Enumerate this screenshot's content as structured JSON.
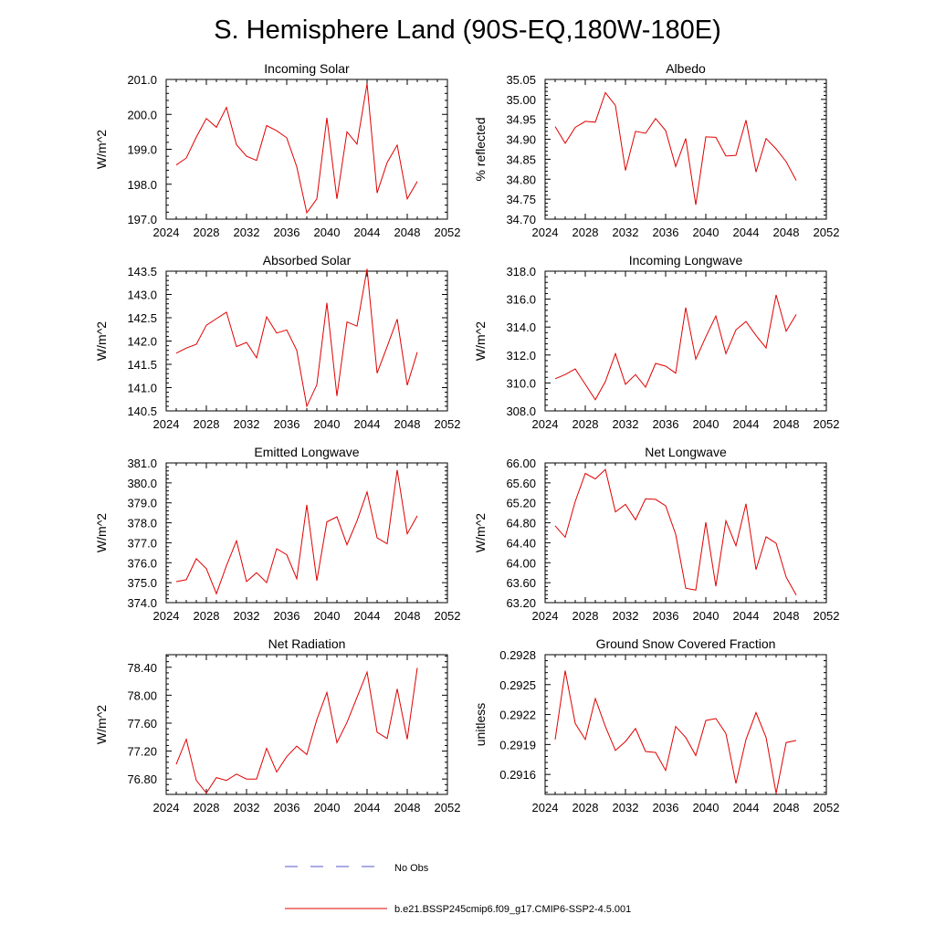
{
  "figure": {
    "title": "S. Hemisphere Land (90S-EQ,180W-180E)",
    "legend": {
      "obs_label": "No Obs",
      "model_label": "b.e21.BSSP245cmip6.f09_g17.CMIP6-SSP2-4.5.001",
      "obs_color": "#5555cc",
      "model_color": "#e00000"
    }
  },
  "chart_data": [
    {
      "type": "line",
      "title": "Incoming Solar",
      "ylabel": "W/m^2",
      "xlim": [
        2024,
        2052
      ],
      "xticks": [
        2024,
        2028,
        2032,
        2036,
        2040,
        2044,
        2048,
        2052
      ],
      "ylim": [
        197.0,
        201.0
      ],
      "yticks": [
        197.0,
        198.0,
        199.0,
        200.0,
        201.0
      ],
      "ytick_labels": [
        "197.0",
        "198.0",
        "199.0",
        "200.0",
        "201.0"
      ],
      "x": [
        2025,
        2026,
        2027,
        2028,
        2029,
        2030,
        2031,
        2032,
        2033,
        2034,
        2035,
        2036,
        2037,
        2038,
        2039,
        2040,
        2041,
        2042,
        2043,
        2044,
        2045,
        2046,
        2047,
        2048,
        2049
      ],
      "series": [
        {
          "name": "b.e21.BSSP245cmip6.f09_g17.CMIP6-SSP2-4.5.001",
          "values": [
            198.55,
            198.75,
            199.35,
            199.88,
            199.63,
            200.2,
            199.13,
            198.8,
            198.68,
            199.68,
            199.53,
            199.33,
            198.5,
            197.18,
            197.58,
            199.9,
            197.58,
            199.5,
            199.15,
            200.88,
            197.75,
            198.62,
            199.12,
            197.58,
            198.08
          ]
        }
      ]
    },
    {
      "type": "line",
      "title": "Albedo",
      "ylabel": "% reflected",
      "xlim": [
        2024,
        2052
      ],
      "xticks": [
        2024,
        2028,
        2032,
        2036,
        2040,
        2044,
        2048,
        2052
      ],
      "ylim": [
        34.7,
        35.05
      ],
      "yticks": [
        34.7,
        34.75,
        34.8,
        34.85,
        34.9,
        34.95,
        35.0,
        35.05
      ],
      "ytick_labels": [
        "34.70",
        "34.75",
        "34.80",
        "34.85",
        "34.90",
        "34.95",
        "35.00",
        "35.05"
      ],
      "x": [
        2025,
        2026,
        2027,
        2028,
        2029,
        2030,
        2031,
        2032,
        2033,
        2034,
        2035,
        2036,
        2037,
        2038,
        2039,
        2040,
        2041,
        2042,
        2043,
        2044,
        2045,
        2046,
        2047,
        2048,
        2049
      ],
      "series": [
        {
          "name": "b.e21.BSSP245cmip6.f09_g17.CMIP6-SSP2-4.5.001",
          "values": [
            34.932,
            34.89,
            34.93,
            34.945,
            34.943,
            35.017,
            34.985,
            34.822,
            34.92,
            34.915,
            34.952,
            34.922,
            34.832,
            34.902,
            34.736,
            34.906,
            34.905,
            34.858,
            34.86,
            34.948,
            34.818,
            34.902,
            34.876,
            34.844,
            34.797
          ]
        }
      ]
    },
    {
      "type": "line",
      "title": "Absorbed Solar",
      "ylabel": "W/m^2",
      "xlim": [
        2024,
        2052
      ],
      "xticks": [
        2024,
        2028,
        2032,
        2036,
        2040,
        2044,
        2048,
        2052
      ],
      "ylim": [
        140.5,
        143.5
      ],
      "yticks": [
        140.5,
        141.0,
        141.5,
        142.0,
        142.5,
        143.0,
        143.5
      ],
      "ytick_labels": [
        "140.5",
        "141.0",
        "141.5",
        "142.0",
        "142.5",
        "143.0",
        "143.5"
      ],
      "x": [
        2025,
        2026,
        2027,
        2028,
        2029,
        2030,
        2031,
        2032,
        2033,
        2034,
        2035,
        2036,
        2037,
        2038,
        2039,
        2040,
        2041,
        2042,
        2043,
        2044,
        2045,
        2046,
        2047,
        2048,
        2049
      ],
      "series": [
        {
          "name": "b.e21.BSSP245cmip6.f09_g17.CMIP6-SSP2-4.5.001",
          "values": [
            141.74,
            141.85,
            141.93,
            142.34,
            142.48,
            142.62,
            141.88,
            141.97,
            141.64,
            142.52,
            142.17,
            142.24,
            141.8,
            140.6,
            141.06,
            142.82,
            140.82,
            142.41,
            142.32,
            143.55,
            141.31,
            141.88,
            142.47,
            141.05,
            141.76
          ]
        }
      ]
    },
    {
      "type": "line",
      "title": "Incoming Longwave",
      "ylabel": "W/m^2",
      "xlim": [
        2024,
        2052
      ],
      "xticks": [
        2024,
        2028,
        2032,
        2036,
        2040,
        2044,
        2048,
        2052
      ],
      "ylim": [
        308.0,
        318.0
      ],
      "yticks": [
        308.0,
        310.0,
        312.0,
        314.0,
        316.0,
        318.0
      ],
      "ytick_labels": [
        "308.0",
        "310.0",
        "312.0",
        "314.0",
        "316.0",
        "318.0"
      ],
      "x": [
        2025,
        2026,
        2027,
        2028,
        2029,
        2030,
        2031,
        2032,
        2033,
        2034,
        2035,
        2036,
        2037,
        2038,
        2039,
        2040,
        2041,
        2042,
        2043,
        2044,
        2045,
        2046,
        2047,
        2048,
        2049
      ],
      "series": [
        {
          "name": "b.e21.BSSP245cmip6.f09_g17.CMIP6-SSP2-4.5.001",
          "values": [
            310.3,
            310.6,
            311.0,
            309.9,
            308.8,
            310.1,
            312.1,
            309.9,
            310.6,
            309.7,
            311.4,
            311.2,
            310.7,
            315.4,
            311.7,
            313.3,
            314.8,
            312.1,
            313.8,
            314.4,
            313.4,
            312.5,
            316.3,
            313.7,
            314.9
          ]
        }
      ]
    },
    {
      "type": "line",
      "title": "Emitted Longwave",
      "ylabel": "W/m^2",
      "xlim": [
        2024,
        2052
      ],
      "xticks": [
        2024,
        2028,
        2032,
        2036,
        2040,
        2044,
        2048,
        2052
      ],
      "ylim": [
        374.0,
        381.0
      ],
      "yticks": [
        374.0,
        375.0,
        376.0,
        377.0,
        378.0,
        379.0,
        380.0,
        381.0
      ],
      "ytick_labels": [
        "374.0",
        "375.0",
        "376.0",
        "377.0",
        "378.0",
        "379.0",
        "380.0",
        "381.0"
      ],
      "x": [
        2025,
        2026,
        2027,
        2028,
        2029,
        2030,
        2031,
        2032,
        2033,
        2034,
        2035,
        2036,
        2037,
        2038,
        2039,
        2040,
        2041,
        2042,
        2043,
        2044,
        2045,
        2046,
        2047,
        2048,
        2049
      ],
      "series": [
        {
          "name": "b.e21.BSSP245cmip6.f09_g17.CMIP6-SSP2-4.5.001",
          "values": [
            375.05,
            375.15,
            376.2,
            375.7,
            374.45,
            375.85,
            377.1,
            375.05,
            375.5,
            375.0,
            376.7,
            376.4,
            375.2,
            378.9,
            375.1,
            378.05,
            378.3,
            376.9,
            378.1,
            379.55,
            377.25,
            376.95,
            380.65,
            377.45,
            378.35
          ]
        }
      ]
    },
    {
      "type": "line",
      "title": "Net Longwave",
      "ylabel": "W/m^2",
      "xlim": [
        2024,
        2052
      ],
      "xticks": [
        2024,
        2028,
        2032,
        2036,
        2040,
        2044,
        2048,
        2052
      ],
      "ylim": [
        63.2,
        66.0
      ],
      "yticks": [
        63.2,
        63.6,
        64.0,
        64.4,
        64.8,
        65.2,
        65.6,
        66.0
      ],
      "ytick_labels": [
        "63.20",
        "63.60",
        "64.00",
        "64.40",
        "64.80",
        "65.20",
        "65.60",
        "66.00"
      ],
      "x": [
        2025,
        2026,
        2027,
        2028,
        2029,
        2030,
        2031,
        2032,
        2033,
        2034,
        2035,
        2036,
        2037,
        2038,
        2039,
        2040,
        2041,
        2042,
        2043,
        2044,
        2045,
        2046,
        2047,
        2048,
        2049
      ],
      "series": [
        {
          "name": "b.e21.BSSP245cmip6.f09_g17.CMIP6-SSP2-4.5.001",
          "values": [
            64.74,
            64.51,
            65.23,
            65.79,
            65.68,
            65.87,
            65.02,
            65.17,
            64.86,
            65.28,
            65.27,
            65.14,
            64.57,
            63.49,
            63.45,
            64.81,
            63.53,
            64.84,
            64.34,
            65.18,
            63.86,
            64.52,
            64.39,
            63.71,
            63.35
          ]
        }
      ]
    },
    {
      "type": "line",
      "title": "Net Radiation",
      "ylabel": "W/m^2",
      "xlim": [
        2024,
        2052
      ],
      "xticks": [
        2024,
        2028,
        2032,
        2036,
        2040,
        2044,
        2048,
        2052
      ],
      "ylim": [
        76.58,
        78.58
      ],
      "yticks": [
        76.8,
        77.2,
        77.6,
        78.0,
        78.4
      ],
      "ytick_labels": [
        "76.80",
        "77.20",
        "77.60",
        "78.00",
        "78.40"
      ],
      "x": [
        2025,
        2026,
        2027,
        2028,
        2029,
        2030,
        2031,
        2032,
        2033,
        2034,
        2035,
        2036,
        2037,
        2038,
        2039,
        2040,
        2041,
        2042,
        2043,
        2044,
        2045,
        2046,
        2047,
        2048,
        2049
      ],
      "series": [
        {
          "name": "b.e21.BSSP245cmip6.f09_g17.CMIP6-SSP2-4.5.001",
          "values": [
            77.01,
            77.37,
            76.78,
            76.6,
            76.82,
            76.78,
            76.87,
            76.8,
            76.8,
            77.24,
            76.9,
            77.12,
            77.27,
            77.15,
            77.65,
            78.04,
            77.32,
            77.61,
            77.97,
            78.33,
            77.47,
            77.38,
            78.09,
            77.37,
            78.39
          ]
        }
      ]
    },
    {
      "type": "line",
      "title": "Ground Snow Covered Fraction",
      "ylabel": "unitless",
      "xlim": [
        2024,
        2052
      ],
      "xticks": [
        2024,
        2028,
        2032,
        2036,
        2040,
        2044,
        2048,
        2052
      ],
      "ylim": [
        0.2914,
        0.2928
      ],
      "yticks": [
        0.2916,
        0.2919,
        0.2922,
        0.2925,
        0.2928
      ],
      "ytick_labels": [
        "0.2916",
        "0.2919",
        "0.2922",
        "0.2925",
        "0.2928"
      ],
      "x": [
        2025,
        2026,
        2027,
        2028,
        2029,
        2030,
        2031,
        2032,
        2033,
        2034,
        2035,
        2036,
        2037,
        2038,
        2039,
        2040,
        2041,
        2042,
        2043,
        2044,
        2045,
        2046,
        2047,
        2048,
        2049
      ],
      "series": [
        {
          "name": "b.e21.BSSP245cmip6.f09_g17.CMIP6-SSP2-4.5.001",
          "values": [
            0.29195,
            0.29264,
            0.29211,
            0.29195,
            0.29236,
            0.29208,
            0.29184,
            0.29193,
            0.29206,
            0.29183,
            0.29182,
            0.29164,
            0.29208,
            0.29197,
            0.29179,
            0.29214,
            0.29216,
            0.29201,
            0.29151,
            0.29195,
            0.29222,
            0.29197,
            0.29141,
            0.29192,
            0.29194
          ]
        }
      ]
    }
  ]
}
